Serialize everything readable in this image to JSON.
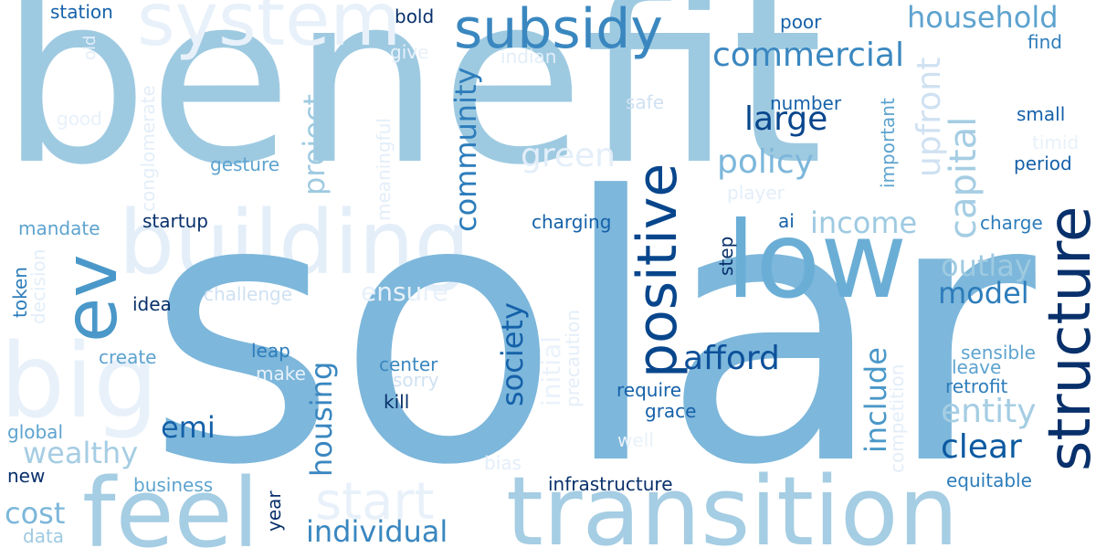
{
  "words": [
    {
      "text": "solar",
      "color": "#7db7db"
    },
    {
      "text": "benefit",
      "color": "#9ecae1"
    },
    {
      "text": "building",
      "color": "#e3eef9"
    },
    {
      "text": "system",
      "color": "#e8f1fa"
    },
    {
      "text": "big",
      "color": "#e8f1fa"
    },
    {
      "text": "transition",
      "color": "#a5cde3"
    },
    {
      "text": "feel",
      "color": "#a5cde3"
    },
    {
      "text": "low",
      "color": "#6aaed6"
    },
    {
      "text": "subsidy",
      "color": "#3a87c0"
    },
    {
      "text": "structure",
      "color": "#08306b"
    },
    {
      "text": "positive",
      "color": "#08468c"
    },
    {
      "text": "ev",
      "color": "#4a98c9"
    },
    {
      "text": "start",
      "color": "#e8f1fa"
    },
    {
      "text": "capital",
      "color": "#a5cde3"
    },
    {
      "text": "commercial",
      "color": "#3a87c0"
    },
    {
      "text": "household",
      "color": "#5da3cf"
    },
    {
      "text": "policy",
      "color": "#7db7db"
    },
    {
      "text": "large",
      "color": "#08468c"
    },
    {
      "text": "green",
      "color": "#e3eef9"
    },
    {
      "text": "afford",
      "color": "#0d509a"
    },
    {
      "text": "income",
      "color": "#9ecae1"
    },
    {
      "text": "upfront",
      "color": "#cfe1f2"
    },
    {
      "text": "outlay",
      "color": "#9ecae1"
    },
    {
      "text": "model",
      "color": "#2d7dbb"
    },
    {
      "text": "entity",
      "color": "#a5cde3"
    },
    {
      "text": "clear",
      "color": "#0b5aa1"
    },
    {
      "text": "emi",
      "color": "#1561a9"
    },
    {
      "text": "wealthy",
      "color": "#a5cde3"
    },
    {
      "text": "cost",
      "color": "#7db7db"
    },
    {
      "text": "individual",
      "color": "#3a87c0"
    },
    {
      "text": "project",
      "color": "#9ecae1"
    },
    {
      "text": "community",
      "color": "#2d7dbb"
    },
    {
      "text": "society",
      "color": "#1561a9"
    },
    {
      "text": "housing",
      "color": "#3a87c0"
    },
    {
      "text": "include",
      "color": "#4a98c9"
    },
    {
      "text": "ensure",
      "color": "#e8f1fa"
    },
    {
      "text": "initial",
      "color": "#eaf2fb"
    },
    {
      "text": "station",
      "color": "#1561a9"
    },
    {
      "text": "bold",
      "color": "#08306b"
    },
    {
      "text": "poor",
      "color": "#1561a9"
    },
    {
      "text": "find",
      "color": "#2d7dbb"
    },
    {
      "text": "old",
      "color": "#e3eef9"
    },
    {
      "text": "give",
      "color": "#e8f1fa"
    },
    {
      "text": "indian",
      "color": "#e3eef9"
    },
    {
      "text": "conglomerate",
      "color": "#e3eef9"
    },
    {
      "text": "good",
      "color": "#e8f1fa"
    },
    {
      "text": "safe",
      "color": "#cfe1f2"
    },
    {
      "text": "number",
      "color": "#1561a9"
    },
    {
      "text": "important",
      "color": "#5da3cf"
    },
    {
      "text": "small",
      "color": "#1561a9"
    },
    {
      "text": "timid",
      "color": "#e8f1fa"
    },
    {
      "text": "period",
      "color": "#1561a9"
    },
    {
      "text": "meaningful",
      "color": "#e3eef9"
    },
    {
      "text": "gesture",
      "color": "#5da3cf"
    },
    {
      "text": "player",
      "color": "#e3eef9"
    },
    {
      "text": "startup",
      "color": "#08306b"
    },
    {
      "text": "mandate",
      "color": "#5da3cf"
    },
    {
      "text": "charging",
      "color": "#1561a9"
    },
    {
      "text": "ai",
      "color": "#1561a9"
    },
    {
      "text": "charge",
      "color": "#2d7dbb"
    },
    {
      "text": "step",
      "color": "#08306b"
    },
    {
      "text": "token",
      "color": "#2d7dbb"
    },
    {
      "text": "decision",
      "color": "#e3eef9"
    },
    {
      "text": "idea",
      "color": "#08306b"
    },
    {
      "text": "challenge",
      "color": "#cfe1f2"
    },
    {
      "text": "precaution",
      "color": "#e3eef9"
    },
    {
      "text": "create",
      "color": "#5da3cf"
    },
    {
      "text": "leap",
      "color": "#2d7dbb"
    },
    {
      "text": "make",
      "color": "#e8f1fa"
    },
    {
      "text": "center",
      "color": "#3a87c0"
    },
    {
      "text": "sorry",
      "color": "#cfe1f2"
    },
    {
      "text": "kill",
      "color": "#08306b"
    },
    {
      "text": "require",
      "color": "#1561a9"
    },
    {
      "text": "grace",
      "color": "#1561a9"
    },
    {
      "text": "competition",
      "color": "#e3eef9"
    },
    {
      "text": "sensible",
      "color": "#5da3cf"
    },
    {
      "text": "leave",
      "color": "#5da3cf"
    },
    {
      "text": "retrofit",
      "color": "#2d7dbb"
    },
    {
      "text": "well",
      "color": "#e8f1fa"
    },
    {
      "text": "global",
      "color": "#5da3cf"
    },
    {
      "text": "new",
      "color": "#08306b"
    },
    {
      "text": "bias",
      "color": "#e3eef9"
    },
    {
      "text": "business",
      "color": "#5da3cf"
    },
    {
      "text": "year",
      "color": "#08306b"
    },
    {
      "text": "infrastructure",
      "color": "#08306b"
    },
    {
      "text": "equitable",
      "color": "#2d7dbb"
    },
    {
      "text": "data",
      "color": "#9ecae1"
    }
  ]
}
